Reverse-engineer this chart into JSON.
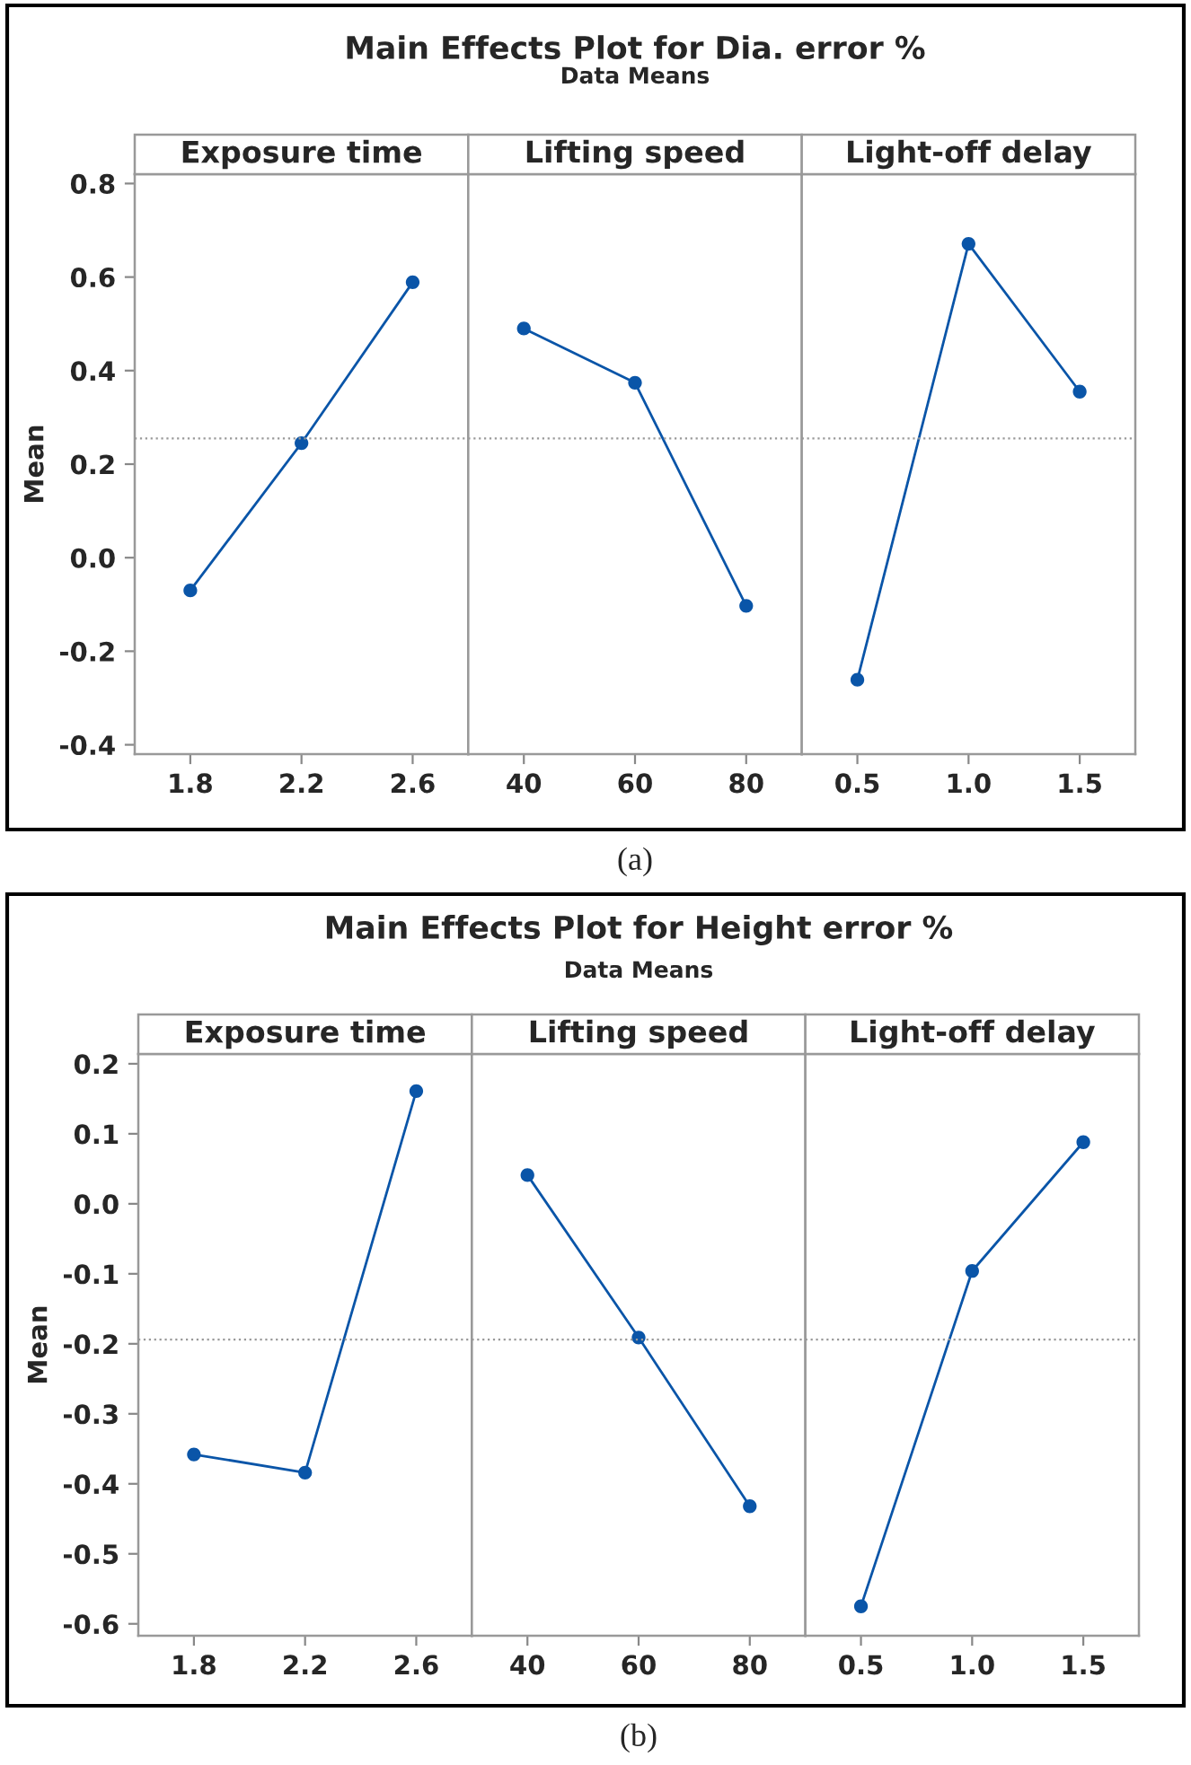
{
  "chart_data": [
    {
      "type": "line",
      "xlabel": "Exposure time",
      "ylabel": "Mean",
      "categories": [
        "1.8",
        "2.2",
        "2.6"
      ],
      "series": [
        {
          "color": "#0a55a8",
          "values": [
            -0.07,
            0.245,
            0.589
          ]
        }
      ],
      "ylim": [
        -0.42,
        0.82
      ],
      "yticks": [
        -0.4,
        -0.2,
        {
          "value": 0,
          "label": "0.0"
        },
        0.2,
        0.4,
        0.6,
        0.8
      ],
      "ref_lines": [
        {
          "axis": "y",
          "value": 0.255,
          "color": "#999999",
          "line_style": "dotted"
        }
      ],
      "marker": "circle",
      "line_style": "solid",
      "grid": false,
      "legend": false
    },
    {
      "type": "line",
      "title": "Main Effects Plot for Dia. error %",
      "subtitle": "Data Means",
      "xlabel": "Lifting speed",
      "categories": [
        "40",
        "60",
        "80"
      ],
      "series": [
        {
          "color": "#0a55a8",
          "values": [
            0.49,
            0.374,
            -0.103
          ]
        }
      ],
      "ylim": [
        -0.42,
        0.82
      ],
      "tick_labels": "x",
      "ref_lines": [
        {
          "axis": "y",
          "value": 0.255,
          "color": "#999999",
          "line_style": "dotted"
        }
      ],
      "marker": "circle",
      "line_style": "solid",
      "grid": false,
      "legend": false,
      "annotations": [
        "(a)"
      ]
    },
    {
      "type": "line",
      "xlabel": "Light-off delay",
      "categories": [
        "0.5",
        "1.0",
        "1.5"
      ],
      "series": [
        {
          "color": "#0a55a8",
          "values": [
            -0.261,
            0.671,
            0.355
          ]
        }
      ],
      "ylim": [
        -0.42,
        0.82
      ],
      "tick_labels": "x",
      "ref_lines": [
        {
          "axis": "y",
          "value": 0.255,
          "color": "#999999",
          "line_style": "dotted"
        }
      ],
      "marker": "circle",
      "line_style": "solid",
      "grid": false,
      "legend": false
    },
    {
      "type": "line",
      "xlabel": "Exposure time",
      "ylabel": "Mean",
      "categories": [
        "1.8",
        "2.2",
        "2.6"
      ],
      "series": [
        {
          "color": "#0a55a8",
          "values": [
            -0.358,
            -0.384,
            0.161
          ]
        }
      ],
      "ylim": [
        -0.617,
        0.214
      ],
      "yticks": [
        -0.6,
        -0.5,
        -0.4,
        -0.3,
        -0.2,
        -0.1,
        {
          "value": 0,
          "label": "0.0"
        },
        0.1,
        0.2
      ],
      "ref_lines": [
        {
          "axis": "y",
          "value": -0.194,
          "color": "#999999",
          "line_style": "dotted"
        }
      ],
      "marker": "circle",
      "line_style": "solid",
      "grid": false,
      "legend": false
    },
    {
      "type": "line",
      "title": "Main Effects Plot for Height error %",
      "subtitle": "Data Means",
      "xlabel": "Lifting speed",
      "categories": [
        "40",
        "60",
        "80"
      ],
      "series": [
        {
          "color": "#0a55a8",
          "values": [
            0.041,
            -0.191,
            -0.432
          ]
        }
      ],
      "ylim": [
        -0.617,
        0.214
      ],
      "tick_labels": "x",
      "ref_lines": [
        {
          "axis": "y",
          "value": -0.194,
          "color": "#999999",
          "line_style": "dotted"
        }
      ],
      "marker": "circle",
      "line_style": "solid",
      "grid": false,
      "legend": false,
      "annotations": [
        "(b)"
      ]
    },
    {
      "type": "line",
      "xlabel": "Light-off delay",
      "categories": [
        "0.5",
        "1.0",
        "1.5"
      ],
      "series": [
        {
          "color": "#0a55a8",
          "values": [
            -0.575,
            -0.096,
            0.088
          ]
        }
      ],
      "ylim": [
        -0.617,
        0.214
      ],
      "tick_labels": "x",
      "ref_lines": [
        {
          "axis": "y",
          "value": -0.194,
          "color": "#999999",
          "line_style": "dotted"
        }
      ],
      "marker": "circle",
      "line_style": "solid",
      "grid": false,
      "legend": false
    }
  ]
}
